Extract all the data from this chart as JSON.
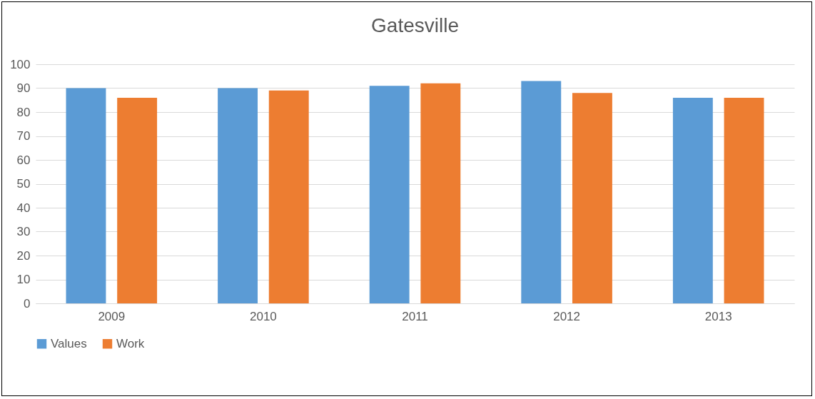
{
  "chart_data": {
    "type": "bar",
    "title": "Gatesville",
    "categories": [
      "2009",
      "2010",
      "2011",
      "2012",
      "2013"
    ],
    "series": [
      {
        "name": "Values",
        "color": "#5b9bd5",
        "values": [
          90,
          90,
          91,
          93,
          86
        ]
      },
      {
        "name": "Work",
        "color": "#ed7d31",
        "values": [
          86,
          89,
          92,
          88,
          86
        ]
      }
    ],
    "ylim": [
      0,
      100
    ],
    "yticks": [
      0,
      10,
      20,
      30,
      40,
      50,
      60,
      70,
      80,
      90,
      100
    ],
    "grid": "y",
    "legend": "bottom"
  }
}
